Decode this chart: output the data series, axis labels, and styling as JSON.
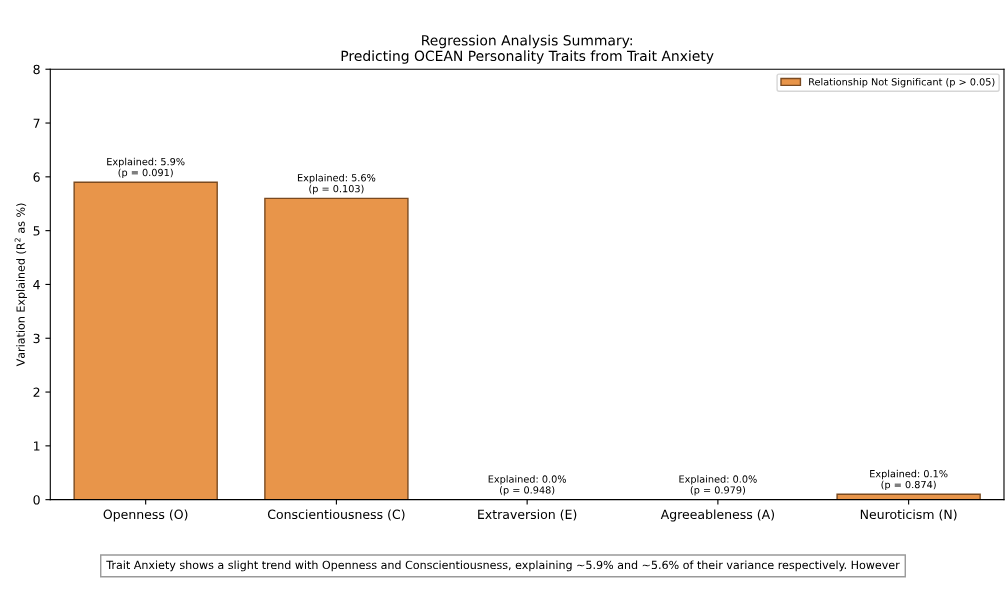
{
  "chart_data": {
    "type": "bar",
    "title": "Regression Analysis Summary:\nPredicting OCEAN Personality Traits from Trait Anxiety",
    "ylabel": "Variation Explained (R$^{2}$ as %)",
    "categories": [
      "Openness (O)",
      "Conscientiousness (C)",
      "Extraversion (E)",
      "Agreeableness (A)",
      "Neuroticism (N)"
    ],
    "series": [
      {
        "name": "Relationship Not Significant (p > 0.05)",
        "color": "#e8954a",
        "values": [
          5.9,
          5.6,
          0.0,
          0.0,
          0.1
        ],
        "value_labels": [
          "Explained: 5.9%\n(p = 0.091)",
          "Explained: 5.6%\n(p = 0.103)",
          "Explained: 0.0%\n(p = 0.948)",
          "Explained: 0.0%\n(p = 0.979)",
          "Explained: 0.1%\n(p = 0.874)"
        ]
      }
    ],
    "ylim": [
      0,
      8
    ],
    "yticks": [
      0,
      1,
      2,
      3,
      4,
      5,
      6,
      7,
      8
    ],
    "legend": "top right",
    "annotations": [
      "Trait Anxiety shows a slight trend with Openness and Conscientiousness, explaining ~5.9% and ~5.6% of their variance respectively. However"
    ]
  }
}
